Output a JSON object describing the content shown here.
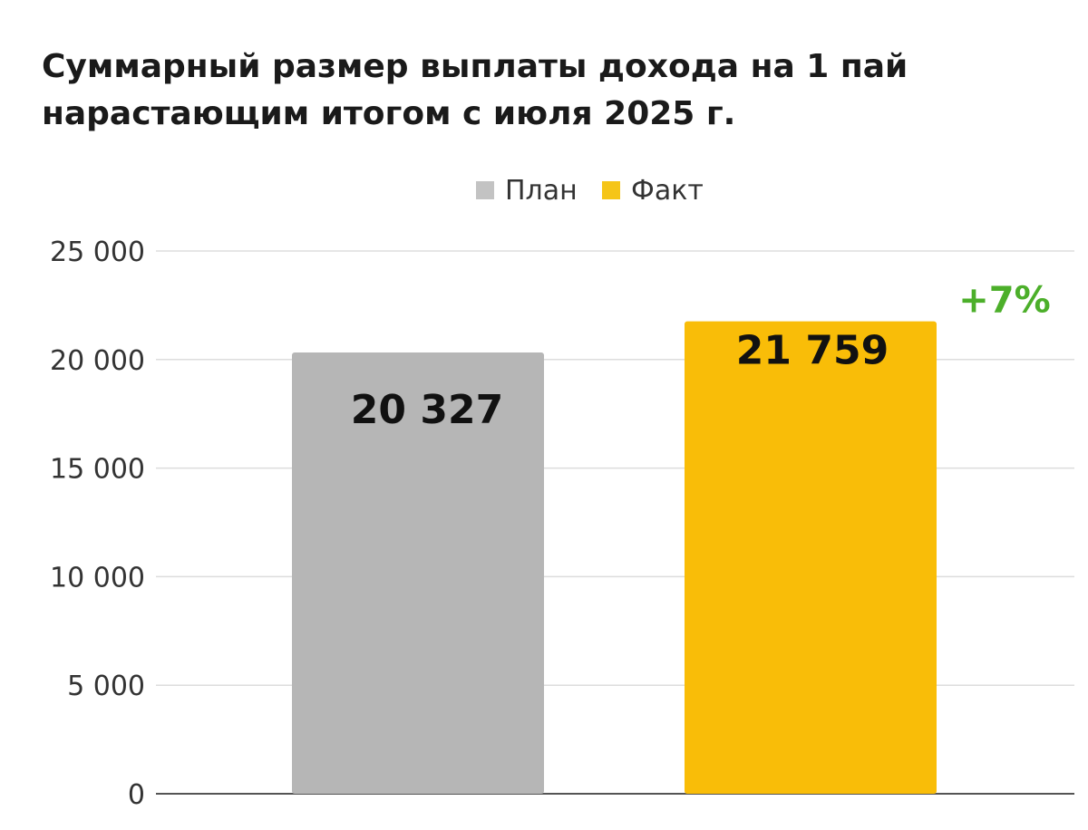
{
  "chart_data": {
    "type": "bar",
    "title_lines": [
      "Суммарный размер выплаты дохода на 1 пай",
      "нарастающим итогом с июля 2025 г."
    ],
    "categories": [
      "План",
      "Факт"
    ],
    "values": [
      20327,
      21759
    ],
    "value_labels": [
      "20 327",
      "21 759"
    ],
    "colors": [
      "#b6b6b6",
      "#f9bd08"
    ],
    "legend": [
      {
        "label": "План",
        "color": "#c3c3c3"
      },
      {
        "label": "Факт",
        "color": "#f5c518"
      }
    ],
    "legend_position": "top-center",
    "ylim": [
      0,
      25000
    ],
    "yticks": [
      0,
      5000,
      10000,
      15000,
      20000,
      25000
    ],
    "ytick_labels": [
      "0",
      "5 000",
      "10 000",
      "15 000",
      "20 000",
      "25 000"
    ],
    "grid": true,
    "annotation": {
      "text": "+7%",
      "color": "#4caf2a"
    }
  }
}
